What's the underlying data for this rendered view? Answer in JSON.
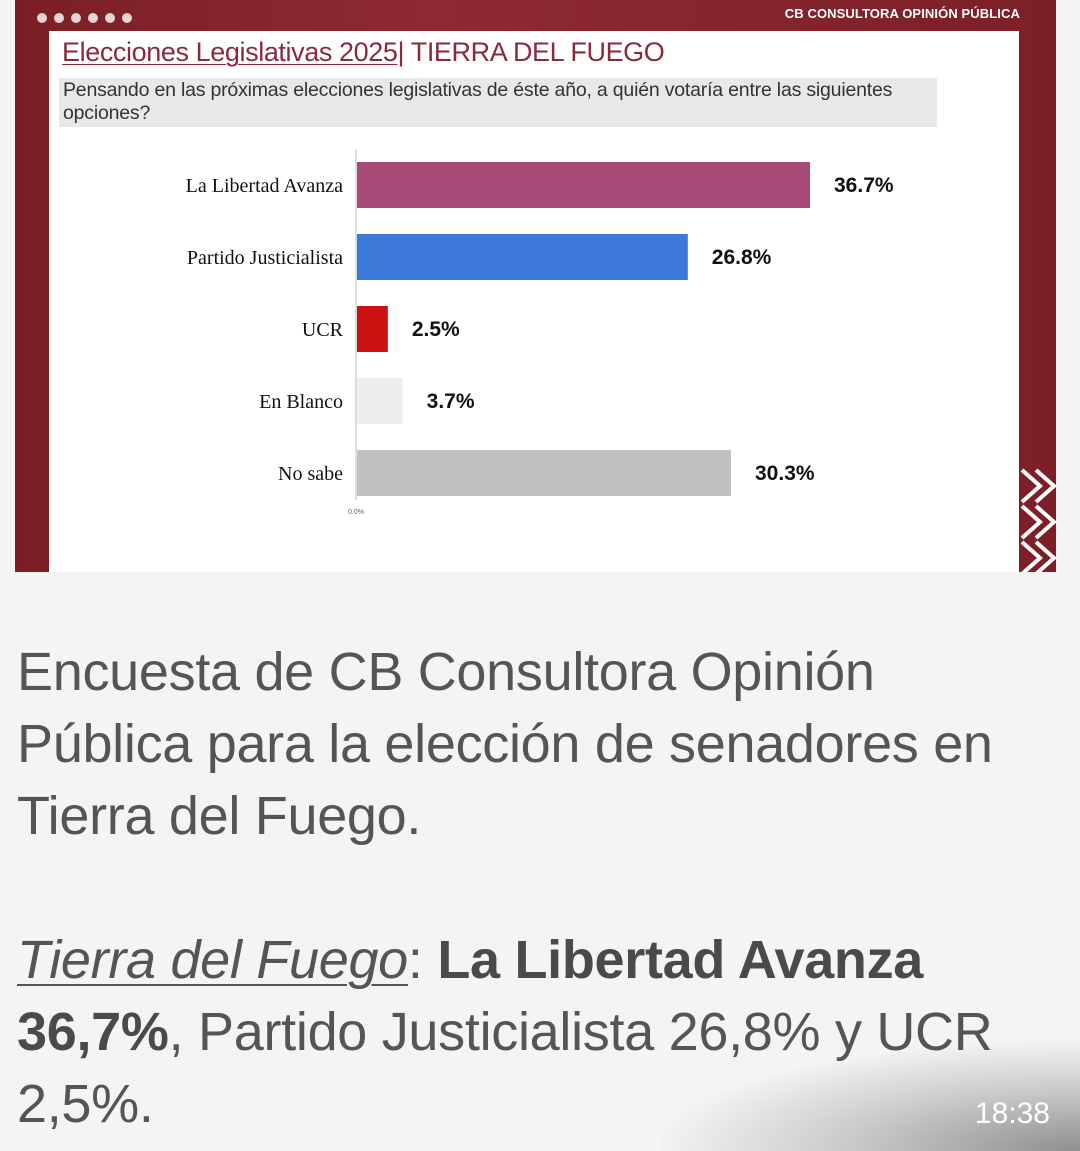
{
  "card": {
    "brand": "CB CONSULTORA OPINIÓN PÚBLICA",
    "title_part1": "Elecciones Legislativas 2025",
    "title_part2": "| TIERRA DEL FUEGO",
    "question": "Pensando en las próximas elecciones legislativas de éste año, a quién votaría entre las siguientes opciones?"
  },
  "chart_data": {
    "type": "bar",
    "orientation": "horizontal",
    "title": "Elecciones Legislativas 2025| TIERRA DEL FUEGO",
    "categories": [
      "La Libertad Avanza",
      "Partido Justicialista",
      "UCR",
      "En Blanco",
      "No sabe"
    ],
    "values": [
      36.7,
      26.8,
      2.5,
      3.7,
      30.3
    ],
    "value_labels": [
      "36.7%",
      "26.8%",
      "2.5%",
      "3.7%",
      "30.3%"
    ],
    "colors": [
      "#a64a77",
      "#3b78d8",
      "#cc1111",
      "#eeeeee",
      "#c0c0c0"
    ],
    "axis_start_label": "0.0%",
    "xlim": [
      0,
      36.7
    ],
    "grid": false,
    "legend": false
  },
  "caption": {
    "line1": "Encuesta de CB Consultora Opinión Pública para la elección de senadores en Tierra del Fuego.",
    "place": "Tierra del Fuego",
    "sep": ": ",
    "bold_part": "La Libertad Avanza 36,7%",
    "rest": ", Partido Justicialista 26,8% y UCR 2,5%."
  },
  "status": {
    "time": "18:38"
  }
}
